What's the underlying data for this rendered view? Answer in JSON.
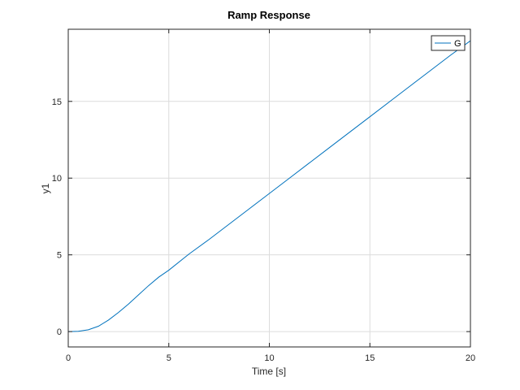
{
  "chart_data": {
    "type": "line",
    "title": "Ramp Response",
    "xlabel": "Time [s]",
    "ylabel": "y1",
    "xlim": [
      0,
      20
    ],
    "ylim": [
      -1,
      19.7
    ],
    "xticks": [
      0,
      5,
      10,
      15,
      20
    ],
    "yticks": [
      0,
      5,
      10,
      15
    ],
    "grid": true,
    "legend_position": "top-right",
    "series": [
      {
        "name": "G",
        "color": "#0072bd",
        "x": [
          0,
          0.5,
          1,
          1.5,
          2,
          2.5,
          3,
          3.5,
          4,
          4.5,
          5,
          6,
          7,
          8,
          9,
          10,
          11,
          12,
          13,
          14,
          15,
          16,
          17,
          18,
          19,
          20
        ],
        "y": [
          0,
          0.02,
          0.12,
          0.35,
          0.75,
          1.25,
          1.8,
          2.4,
          3.0,
          3.55,
          4.0,
          5.05,
          6.0,
          7.0,
          8.0,
          9.0,
          10.0,
          11.0,
          12.0,
          13.0,
          14.0,
          15.0,
          16.0,
          17.0,
          18.0,
          18.95
        ]
      }
    ]
  }
}
